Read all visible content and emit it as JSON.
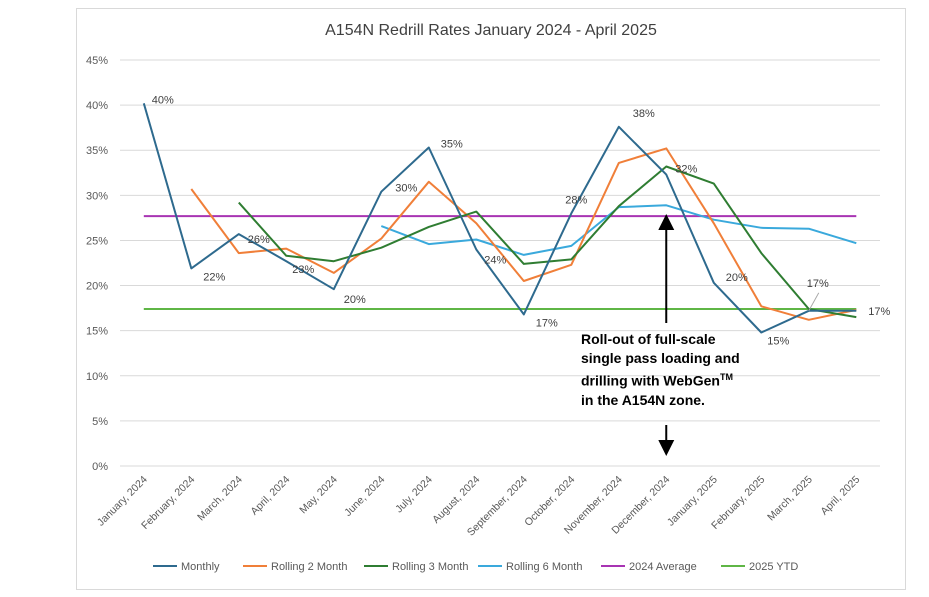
{
  "chart_data": {
    "type": "line",
    "title": "A154N Redrill Rates January 2024 - April 2025",
    "xlabel": "",
    "ylabel": "",
    "ylim": [
      0,
      45
    ],
    "y_ticks": [
      "0%",
      "5%",
      "10%",
      "15%",
      "20%",
      "25%",
      "30%",
      "35%",
      "40%",
      "45%"
    ],
    "grid": true,
    "legend_position": "bottom",
    "categories": [
      "January, 2024",
      "February, 2024",
      "March, 2024",
      "April, 2024",
      "May, 2024",
      "June, 2024",
      "July, 2024",
      "August, 2024",
      "September, 2024",
      "October, 2024",
      "November, 2024",
      "December, 2024",
      "January, 2025",
      "February, 2025",
      "March, 2025",
      "April, 2025"
    ],
    "series": [
      {
        "name": "Monthly",
        "color": "#2e6a8e",
        "values": [
          40.2,
          21.9,
          25.7,
          22.7,
          19.6,
          30.4,
          35.3,
          24.0,
          16.8,
          28.0,
          37.6,
          32.3,
          20.3,
          14.8,
          17.2,
          17.2
        ]
      },
      {
        "name": "Rolling 2 Month",
        "color": "#f07f39",
        "values": [
          null,
          30.7,
          23.6,
          24.1,
          21.4,
          25.2,
          31.5,
          26.9,
          20.5,
          22.3,
          33.6,
          35.2,
          26.9,
          17.7,
          16.2,
          17.3
        ]
      },
      {
        "name": "Rolling 3 Month",
        "color": "#2f7d32",
        "values": [
          null,
          null,
          29.2,
          23.3,
          22.7,
          24.2,
          26.5,
          28.2,
          22.4,
          22.9,
          28.8,
          33.2,
          31.3,
          23.6,
          17.4,
          16.5
        ]
      },
      {
        "name": "Rolling 6 Month",
        "color": "#3aa9dc",
        "values": [
          null,
          null,
          null,
          null,
          null,
          26.6,
          24.6,
          25.1,
          23.4,
          24.4,
          28.7,
          28.9,
          27.3,
          26.4,
          26.3,
          24.7
        ]
      },
      {
        "name": "2024 Average",
        "color": "#a834b3",
        "values": [
          27.7,
          27.7,
          27.7,
          27.7,
          27.7,
          27.7,
          27.7,
          27.7,
          27.7,
          27.7,
          27.7,
          27.7,
          27.7,
          27.7,
          27.7,
          27.7
        ]
      },
      {
        "name": "2025 YTD",
        "color": "#5fb646",
        "values": [
          17.4,
          17.4,
          17.4,
          17.4,
          17.4,
          17.4,
          17.4,
          17.4,
          17.4,
          17.4,
          17.4,
          17.4,
          17.4,
          17.4,
          17.4,
          17.4
        ]
      }
    ],
    "data_labels": [
      {
        "series": "Monthly",
        "index": 0,
        "text": "40%"
      },
      {
        "series": "Monthly",
        "index": 1,
        "text": "22%"
      },
      {
        "series": "Monthly",
        "index": 2,
        "text": "26%"
      },
      {
        "series": "Monthly",
        "index": 3,
        "text": "23%"
      },
      {
        "series": "Monthly",
        "index": 4,
        "text": "20%"
      },
      {
        "series": "Monthly",
        "index": 5,
        "text": "30%"
      },
      {
        "series": "Monthly",
        "index": 6,
        "text": "35%"
      },
      {
        "series": "Monthly",
        "index": 7,
        "text": "24%"
      },
      {
        "series": "Monthly",
        "index": 8,
        "text": "17%"
      },
      {
        "series": "Monthly",
        "index": 9,
        "text": "28%"
      },
      {
        "series": "Monthly",
        "index": 10,
        "text": "38%"
      },
      {
        "series": "Monthly",
        "index": 11,
        "text": "32%"
      },
      {
        "series": "Monthly",
        "index": 12,
        "text": "20%"
      },
      {
        "series": "Monthly",
        "index": 13,
        "text": "15%"
      },
      {
        "series": "Monthly",
        "index": 14,
        "text": "17%"
      },
      {
        "series": "Monthly",
        "index": 15,
        "text": "17%"
      }
    ],
    "annotation": {
      "lines": [
        "Roll-out of full-scale",
        "single pass loading and",
        "drilling with WebGen",
        "in the A154N zone."
      ],
      "trademark": "TM",
      "arrow_category": "December, 2024"
    }
  }
}
